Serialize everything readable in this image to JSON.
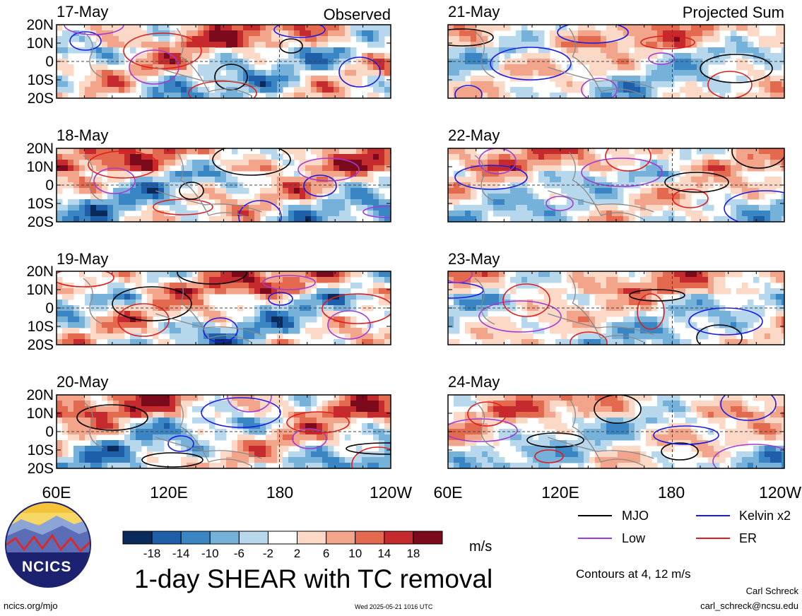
{
  "columns": [
    {
      "header": "Observed",
      "panels": [
        {
          "date": "17-May"
        },
        {
          "date": "18-May"
        },
        {
          "date": "19-May"
        },
        {
          "date": "20-May"
        }
      ]
    },
    {
      "header": "Projected Sum",
      "panels": [
        {
          "date": "21-May"
        },
        {
          "date": "22-May"
        },
        {
          "date": "23-May"
        },
        {
          "date": "24-May"
        }
      ]
    }
  ],
  "lat_ticks": [
    "20N",
    "10N",
    "0",
    "10S",
    "20S"
  ],
  "lon_ticks": [
    "60E",
    "120E",
    "180",
    "120W"
  ],
  "colorbar": {
    "ticks": [
      "-18",
      "-14",
      "-10",
      "-6",
      "-2",
      "2",
      "6",
      "10",
      "14",
      "18"
    ],
    "colors": [
      "#0b2a5c",
      "#1f5ea8",
      "#3a85c4",
      "#76b1da",
      "#b7d8ec",
      "#ffffff",
      "#fbd9c6",
      "#f2a58a",
      "#e3694f",
      "#c42a2e",
      "#7a0a1c"
    ],
    "units": "m/s"
  },
  "title": "1-day SHEAR with TC removal",
  "legend": [
    {
      "label": "MJO",
      "color": "#000000"
    },
    {
      "label": "Kelvin x2",
      "color": "#1a1ae6"
    },
    {
      "label": "Low",
      "color": "#a23ad6"
    },
    {
      "label": "ER",
      "color": "#e01c1c"
    }
  ],
  "contour_note": "Contours at 4, 12 m/s",
  "logo_text": "NCICS",
  "footer": {
    "url": "ncics.org/mjo",
    "timestamp": "Wed 2025-05-21 1016 UTC",
    "author": "Carl Schreck",
    "email": "carl_schreck@ncsu.edu"
  }
}
